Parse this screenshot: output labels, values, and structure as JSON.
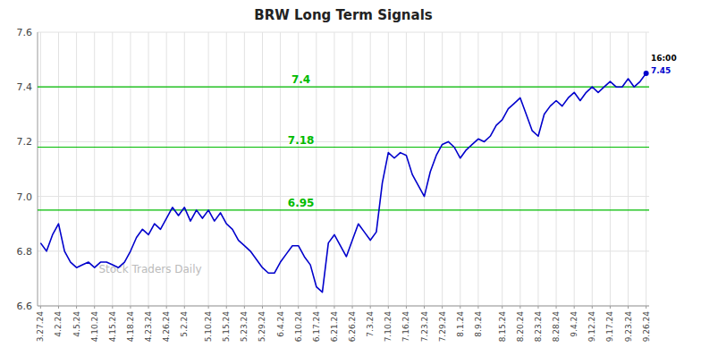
{
  "chart_data": {
    "type": "line",
    "title": "BRW Long Term Signals",
    "categories": [
      "3.27.24",
      null,
      null,
      "4.2.24",
      null,
      null,
      "4.5.24",
      null,
      null,
      "4.10.24",
      null,
      null,
      "4.15.24",
      null,
      null,
      "4.18.24",
      null,
      null,
      "4.23.24",
      null,
      null,
      "4.26.24",
      null,
      null,
      "5.2.24",
      null,
      null,
      null,
      "5.10.24",
      null,
      null,
      "5.15.24",
      null,
      null,
      "5.23.24",
      null,
      null,
      "5.29.24",
      null,
      null,
      "6.4.24",
      null,
      null,
      "6.10.24",
      null,
      null,
      "6.17.24",
      null,
      null,
      "6.21.24",
      null,
      null,
      "6.26.24",
      null,
      null,
      "7.3.24",
      null,
      null,
      "7.10.24",
      null,
      null,
      "7.16.24",
      null,
      null,
      "7.23.24",
      null,
      null,
      "7.29.24",
      null,
      null,
      "8.1.24",
      null,
      null,
      "8.9.24",
      null,
      null,
      null,
      "8.15.24",
      null,
      null,
      "8.20.24",
      null,
      null,
      "8.23.24",
      null,
      null,
      "8.28.24",
      null,
      null,
      "9.4.24",
      null,
      null,
      "9.12.24",
      null,
      null,
      "9.17.24",
      null,
      null,
      "9.23.24",
      null,
      null,
      "9.26.24"
    ],
    "values": [
      6.83,
      6.8,
      6.86,
      6.9,
      6.8,
      6.76,
      6.74,
      6.75,
      6.76,
      6.74,
      6.76,
      6.76,
      6.75,
      6.74,
      6.76,
      6.8,
      6.85,
      6.88,
      6.86,
      6.9,
      6.88,
      6.92,
      6.96,
      6.93,
      6.96,
      6.91,
      6.95,
      6.92,
      6.95,
      6.91,
      6.94,
      6.9,
      6.88,
      6.84,
      6.82,
      6.8,
      6.77,
      6.74,
      6.72,
      6.72,
      6.76,
      6.79,
      6.82,
      6.82,
      6.78,
      6.75,
      6.67,
      6.65,
      6.83,
      6.86,
      6.82,
      6.78,
      6.84,
      6.9,
      6.87,
      6.84,
      6.87,
      7.05,
      7.16,
      7.14,
      7.16,
      7.15,
      7.08,
      7.04,
      7.0,
      7.09,
      7.15,
      7.19,
      7.2,
      7.18,
      7.14,
      7.17,
      7.19,
      7.21,
      7.2,
      7.22,
      7.26,
      7.28,
      7.32,
      7.34,
      7.36,
      7.3,
      7.24,
      7.22,
      7.3,
      7.33,
      7.35,
      7.33,
      7.36,
      7.38,
      7.35,
      7.38,
      7.4,
      7.38,
      7.4,
      7.42,
      7.4,
      7.4,
      7.43,
      7.4,
      7.42,
      7.45
    ],
    "color": "#0000cc",
    "ylim": [
      6.6,
      7.6
    ],
    "yticks": [
      6.6,
      6.8,
      {
        "value": 7.0,
        "label": "7.0"
      },
      7.2,
      7.4,
      7.6
    ],
    "grid": true,
    "hlines": [
      {
        "y": 6.95,
        "label": "6.95",
        "color": "#00bb00"
      },
      {
        "y": 7.18,
        "label": "7.18",
        "color": "#00bb00"
      },
      {
        "y": 7.4,
        "label": "7.4",
        "color": "#00bb00"
      }
    ],
    "annotations": [
      {
        "text": "16:00",
        "color": "#000000"
      },
      {
        "text": "7.45",
        "color": "#0000cc"
      }
    ],
    "watermark": {
      "text": "Stock Traders Daily",
      "color": "#bbbbbb"
    }
  }
}
